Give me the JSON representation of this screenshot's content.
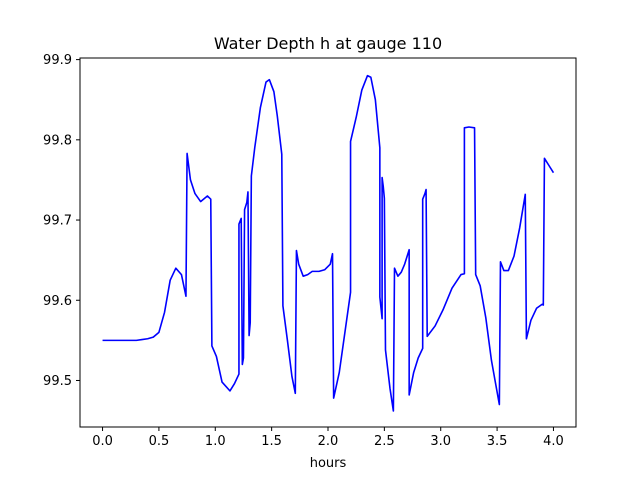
{
  "chart_data": {
    "type": "line",
    "title": "Water Depth h at gauge 110",
    "xlabel": "hours",
    "ylabel": "",
    "xlim": [
      -0.2,
      4.2
    ],
    "ylim": [
      99.442,
      99.902
    ],
    "x_ticks": [
      0.0,
      0.5,
      1.0,
      1.5,
      2.0,
      2.5,
      3.0,
      3.5,
      4.0
    ],
    "x_tick_labels": [
      "0.0",
      "0.5",
      "1.0",
      "1.5",
      "2.0",
      "2.5",
      "3.0",
      "3.5",
      "4.0"
    ],
    "y_ticks": [
      99.5,
      99.6,
      99.7,
      99.8,
      99.9
    ],
    "y_tick_labels": [
      "99.5",
      "99.6",
      "99.7",
      "99.8",
      "99.9"
    ],
    "grid": false,
    "legend": "none",
    "series": [
      {
        "color": "#0000ff",
        "points": [
          [
            0.0,
            99.55
          ],
          [
            0.1,
            99.55
          ],
          [
            0.2,
            99.55
          ],
          [
            0.3,
            99.55
          ],
          [
            0.35,
            99.551
          ],
          [
            0.4,
            99.552
          ],
          [
            0.45,
            99.554
          ],
          [
            0.5,
            99.56
          ],
          [
            0.55,
            99.585
          ],
          [
            0.6,
            99.625
          ],
          [
            0.65,
            99.64
          ],
          [
            0.7,
            99.632
          ],
          [
            0.74,
            99.605
          ],
          [
            0.75,
            99.783
          ],
          [
            0.78,
            99.75
          ],
          [
            0.82,
            99.733
          ],
          [
            0.87,
            99.723
          ],
          [
            0.93,
            99.73
          ],
          [
            0.96,
            99.726
          ],
          [
            0.97,
            99.543
          ],
          [
            1.01,
            99.53
          ],
          [
            1.06,
            99.498
          ],
          [
            1.13,
            99.487
          ],
          [
            1.17,
            99.496
          ],
          [
            1.21,
            99.508
          ],
          [
            1.21,
            99.695
          ],
          [
            1.23,
            99.702
          ],
          [
            1.24,
            99.52
          ],
          [
            1.25,
            99.528
          ],
          [
            1.26,
            99.713
          ],
          [
            1.28,
            99.722
          ],
          [
            1.29,
            99.735
          ],
          [
            1.3,
            99.556
          ],
          [
            1.31,
            99.572
          ],
          [
            1.32,
            99.755
          ],
          [
            1.35,
            99.79
          ],
          [
            1.4,
            99.84
          ],
          [
            1.45,
            99.872
          ],
          [
            1.48,
            99.875
          ],
          [
            1.52,
            99.86
          ],
          [
            1.55,
            99.83
          ],
          [
            1.59,
            99.782
          ],
          [
            1.6,
            99.593
          ],
          [
            1.64,
            99.55
          ],
          [
            1.68,
            99.505
          ],
          [
            1.71,
            99.484
          ],
          [
            1.72,
            99.662
          ],
          [
            1.74,
            99.645
          ],
          [
            1.78,
            99.63
          ],
          [
            1.82,
            99.632
          ],
          [
            1.86,
            99.636
          ],
          [
            1.92,
            99.636
          ],
          [
            1.97,
            99.638
          ],
          [
            2.02,
            99.645
          ],
          [
            2.04,
            99.658
          ],
          [
            2.05,
            99.478
          ],
          [
            2.1,
            99.51
          ],
          [
            2.15,
            99.56
          ],
          [
            2.2,
            99.61
          ],
          [
            2.2,
            99.798
          ],
          [
            2.25,
            99.828
          ],
          [
            2.3,
            99.862
          ],
          [
            2.35,
            99.88
          ],
          [
            2.38,
            99.878
          ],
          [
            2.42,
            99.85
          ],
          [
            2.46,
            99.79
          ],
          [
            2.46,
            99.604
          ],
          [
            2.48,
            99.577
          ],
          [
            2.48,
            99.753
          ],
          [
            2.49,
            99.742
          ],
          [
            2.5,
            99.727
          ],
          [
            2.51,
            99.538
          ],
          [
            2.55,
            99.49
          ],
          [
            2.58,
            99.462
          ],
          [
            2.59,
            99.64
          ],
          [
            2.62,
            99.63
          ],
          [
            2.65,
            99.635
          ],
          [
            2.68,
            99.645
          ],
          [
            2.72,
            99.663
          ],
          [
            2.72,
            99.482
          ],
          [
            2.76,
            99.51
          ],
          [
            2.8,
            99.528
          ],
          [
            2.84,
            99.54
          ],
          [
            2.84,
            99.726
          ],
          [
            2.86,
            99.733
          ],
          [
            2.87,
            99.738
          ],
          [
            2.88,
            99.555
          ],
          [
            2.95,
            99.568
          ],
          [
            3.02,
            99.588
          ],
          [
            3.1,
            99.615
          ],
          [
            3.18,
            99.632
          ],
          [
            3.21,
            99.633
          ],
          [
            3.21,
            99.815
          ],
          [
            3.25,
            99.816
          ],
          [
            3.3,
            99.815
          ],
          [
            3.31,
            99.632
          ],
          [
            3.35,
            99.618
          ],
          [
            3.4,
            99.578
          ],
          [
            3.45,
            99.525
          ],
          [
            3.52,
            99.47
          ],
          [
            3.53,
            99.648
          ],
          [
            3.56,
            99.637
          ],
          [
            3.6,
            99.637
          ],
          [
            3.65,
            99.655
          ],
          [
            3.7,
            99.69
          ],
          [
            3.75,
            99.732
          ],
          [
            3.76,
            99.552
          ],
          [
            3.8,
            99.575
          ],
          [
            3.85,
            99.59
          ],
          [
            3.9,
            99.595
          ],
          [
            3.91,
            99.594
          ],
          [
            3.92,
            99.777
          ],
          [
            3.96,
            99.768
          ],
          [
            4.0,
            99.759
          ]
        ]
      }
    ]
  }
}
